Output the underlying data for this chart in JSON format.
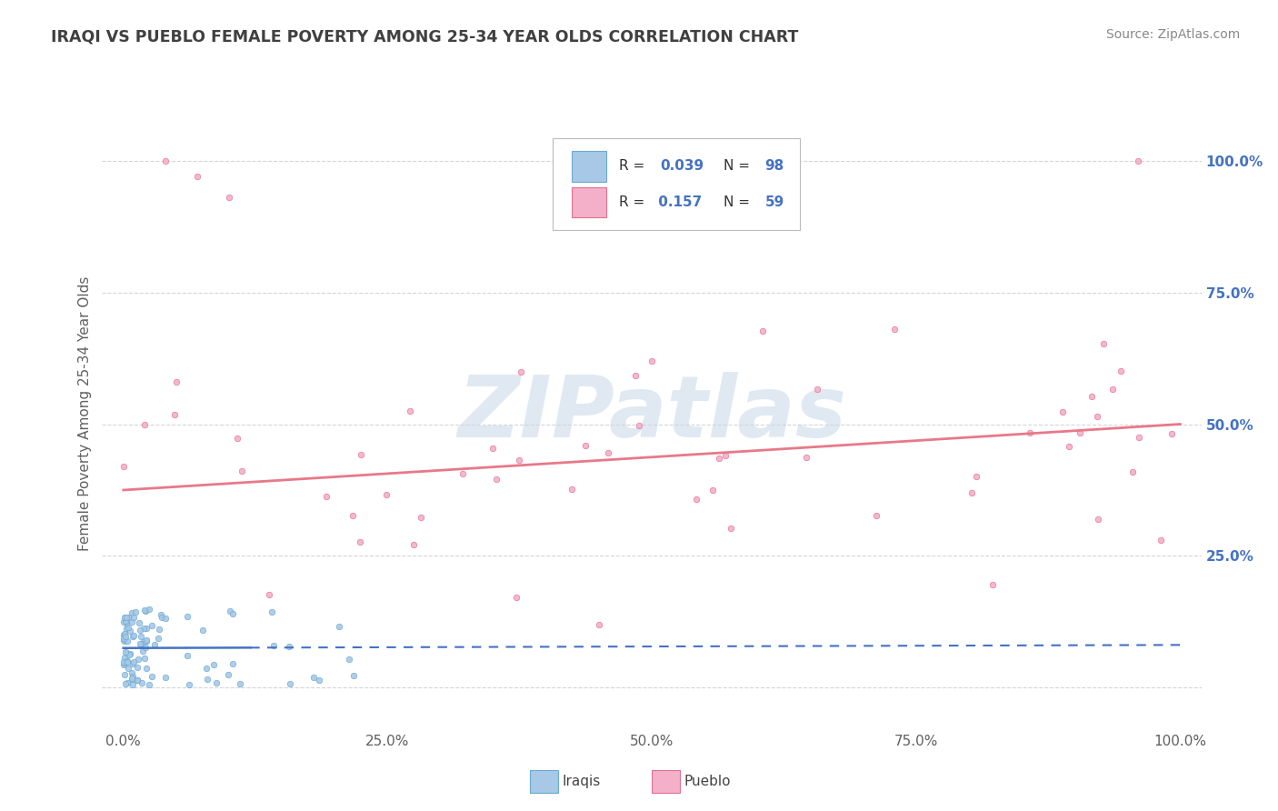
{
  "title": "IRAQI VS PUEBLO FEMALE POVERTY AMONG 25-34 YEAR OLDS CORRELATION CHART",
  "source": "Source: ZipAtlas.com",
  "ylabel": "Female Poverty Among 25-34 Year Olds",
  "xtick_labels": [
    "0.0%",
    "25.0%",
    "50.0%",
    "75.0%",
    "100.0%"
  ],
  "xtick_vals": [
    0,
    0.25,
    0.5,
    0.75,
    1.0
  ],
  "ytick_labels": [
    "25.0%",
    "50.0%",
    "75.0%",
    "100.0%"
  ],
  "ytick_vals": [
    0.25,
    0.5,
    0.75,
    1.0
  ],
  "iraqis_color": "#a8c8e8",
  "iraqis_edge_color": "#6aaad0",
  "pueblo_color": "#f4b0c8",
  "pueblo_edge_color": "#e07090",
  "iraqis_line_color": "#4472c4",
  "pueblo_line_color": "#e8788a",
  "watermark": "ZIPatlas",
  "watermark_color": "#c8d8e8",
  "title_color": "#404040",
  "source_color": "#888888",
  "ylabel_color": "#606060",
  "ytick_color": "#4472c4",
  "xtick_color": "#606060",
  "grid_color": "#cccccc",
  "legend_edge_color": "#bbbbbb",
  "legend_text_color": "#333333",
  "legend_value_color": "#4472c4",
  "R1": "0.039",
  "N1": "98",
  "R2": "0.157",
  "N2": "59",
  "iraqis_label": "Iraqis",
  "pueblo_label": "Pueblo"
}
